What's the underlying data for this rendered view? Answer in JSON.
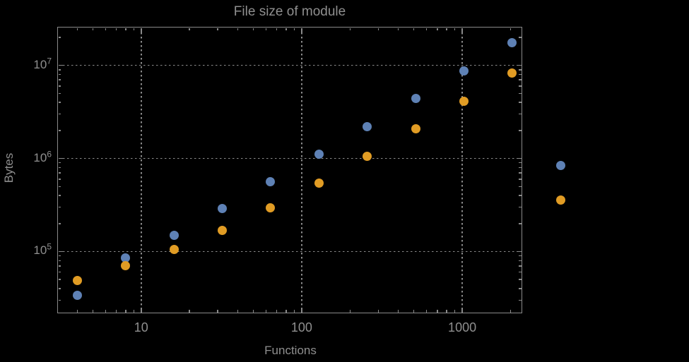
{
  "colors": {
    "background": "#000000",
    "text": "#8f8f8f",
    "frame": "#8a8a8a",
    "grid": "#8a8a8a",
    "series_blue": "#5e81b5",
    "series_orange": "#e19c24"
  },
  "chart_data": {
    "type": "scatter",
    "title": "File size of module",
    "xlabel": "Functions",
    "ylabel": "Bytes",
    "x_scale": "log",
    "y_scale": "log",
    "xlim": [
      3.0,
      2365
    ],
    "ylim": [
      21700,
      26000000
    ],
    "grid": "dotted at major ticks",
    "legend": "none",
    "plot_range_clipping": false,
    "x": [
      4,
      8,
      16,
      32,
      64,
      128,
      256,
      512,
      1024,
      2048,
      4096
    ],
    "series": [
      {
        "name": "blue",
        "color": "#5e81b5",
        "values": [
          34000,
          85000,
          150000,
          290000,
          560000,
          1120000,
          2200000,
          4400000,
          8800000,
          17500000,
          840000
        ]
      },
      {
        "name": "orange",
        "color": "#e19c24",
        "values": [
          49000,
          70000,
          105000,
          170000,
          295000,
          540000,
          1060000,
          2100000,
          4100000,
          8300000,
          360000
        ]
      }
    ],
    "x_ticks": [
      {
        "value": 10,
        "label": "10"
      },
      {
        "value": 100,
        "label": "100"
      },
      {
        "value": 1000,
        "label": "1000"
      }
    ],
    "y_ticks": [
      {
        "value": 100000,
        "mantissa": "10",
        "exponent": "5"
      },
      {
        "value": 1000000,
        "mantissa": "10",
        "exponent": "6"
      },
      {
        "value": 10000000,
        "mantissa": "10",
        "exponent": "7"
      }
    ]
  }
}
